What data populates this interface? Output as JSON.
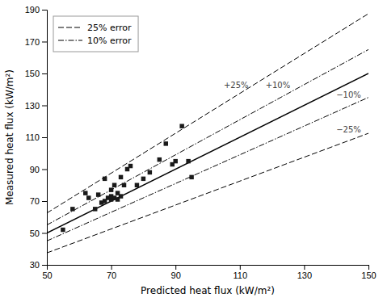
{
  "chart_data": {
    "type": "scatter",
    "xlabel": "Predicted heat flux (kW/m²)",
    "ylabel": "Measured heat flux (kW/m²)",
    "series": [
      {
        "type": "line",
        "color": "#000000",
        "line_style": "solid",
        "x": [
          50,
          150
        ],
        "values": [
          50,
          150
        ]
      },
      {
        "name": "25% error",
        "type": "line",
        "color": "#000000",
        "line_style": "dashed",
        "x": [
          50,
          150
        ],
        "values": [
          62.5,
          187.5
        ]
      },
      {
        "type": "line",
        "color": "#000000",
        "line_style": "dashed",
        "x": [
          50,
          150
        ],
        "values": [
          37.5,
          112.5
        ]
      },
      {
        "name": "10% error",
        "type": "line",
        "color": "#000000",
        "line_style": "dashdot",
        "x": [
          50,
          150
        ],
        "values": [
          55,
          165
        ]
      },
      {
        "type": "line",
        "color": "#000000",
        "line_style": "dashdot",
        "x": [
          50,
          150
        ],
        "values": [
          45,
          135
        ]
      },
      {
        "type": "scatter",
        "color": "#1a1a1a",
        "marker": "square",
        "x": [
          55,
          58,
          62,
          63,
          65,
          66,
          67,
          68,
          68,
          69,
          70,
          70,
          70,
          71,
          71,
          72,
          72,
          73,
          73,
          74,
          75,
          76,
          78,
          80,
          82,
          85,
          87,
          89,
          90,
          92,
          94,
          95
        ],
        "values": [
          52,
          65,
          75,
          72,
          65,
          74,
          69,
          70,
          84,
          72,
          71,
          73,
          77,
          72,
          80,
          71,
          75,
          73,
          85,
          80,
          90,
          92,
          80,
          84,
          88,
          96,
          106,
          93,
          95,
          117,
          95,
          85
        ]
      }
    ],
    "xlim": [
      50,
      150
    ],
    "ylim": [
      30,
      190
    ],
    "xticks": [
      50,
      70,
      90,
      110,
      130,
      150
    ],
    "yticks": [
      30,
      50,
      70,
      90,
      110,
      130,
      150,
      170,
      190
    ],
    "legend": "upper left",
    "annotations": [
      {
        "text": "+25%",
        "x": 105,
        "y": 141
      },
      {
        "text": "+10%",
        "x": 118,
        "y": 141
      },
      {
        "text": "−10%",
        "x": 140,
        "y": 135
      },
      {
        "text": "−25%",
        "x": 140,
        "y": 113
      }
    ]
  }
}
